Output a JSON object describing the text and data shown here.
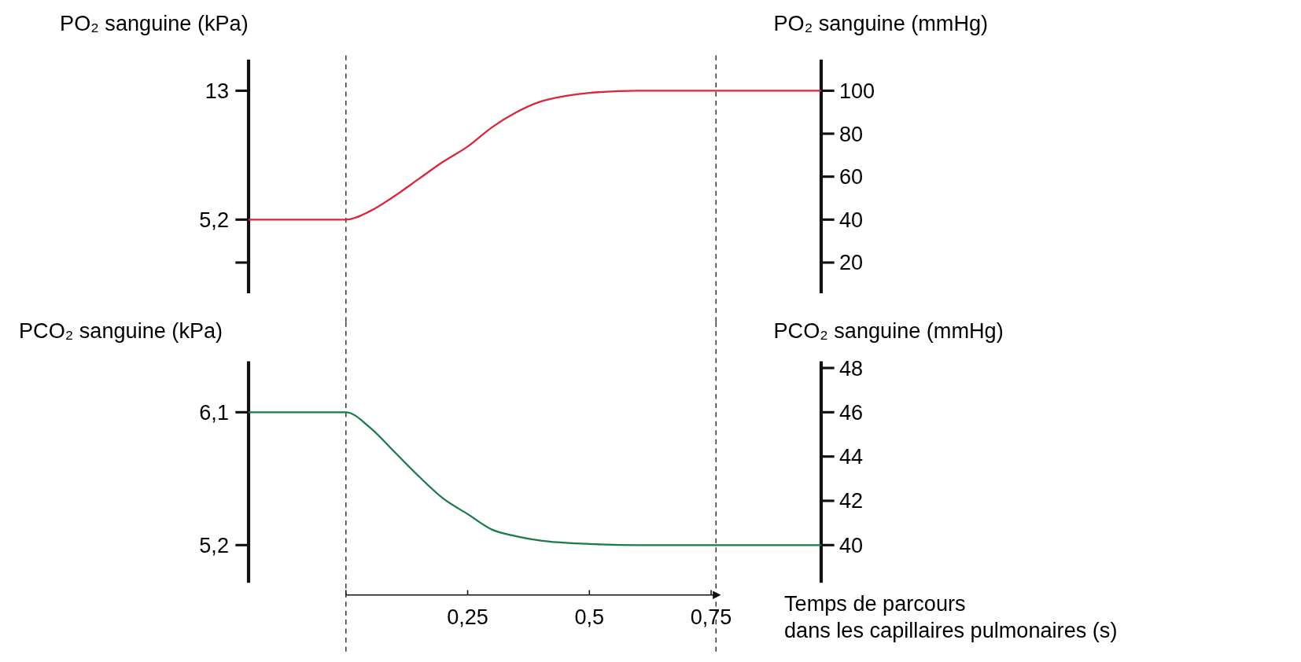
{
  "chart_data": [
    {
      "type": "line",
      "ylabel": "PO₂ sanguine (kPa)",
      "y2label": "PO₂ sanguine (mmHg)",
      "xlim": [
        -0.2,
        0.976
      ],
      "ylim": [
        0.741,
        14.885
      ],
      "yticks": [
        13,
        {
          "value": 5.2,
          "label": "5,2"
        },
        {
          "value": 2.6,
          "label": null
        }
      ],
      "y2lim": [
        5.7,
        114.5
      ],
      "y2ticks": [
        20,
        40,
        60,
        80,
        100
      ],
      "tick_labels": "y",
      "series": [
        {
          "color": "#d9263a",
          "axis": "y2",
          "x": [
            -0.2,
            0,
            0.05,
            0.1,
            0.15,
            0.2,
            0.25,
            0.3,
            0.35,
            0.4,
            0.45,
            0.5,
            0.6,
            0.76,
            0.976
          ],
          "values": [
            40,
            40,
            44,
            51,
            59,
            67,
            74,
            83,
            90,
            95,
            97.5,
            99,
            100,
            100,
            100
          ]
        }
      ],
      "ref_lines": [
        {
          "axis": "x",
          "value": 0,
          "line_style": "dashed"
        },
        {
          "axis": "x",
          "value": 0.76,
          "line_style": "dashed"
        }
      ]
    },
    {
      "type": "line",
      "ylabel": "PCO₂ sanguine (kPa)",
      "y2label": "PCO₂ sanguine (mmHg)",
      "xlabel": "Temps de parcours\ndans les capillaires pulmonaires (s)",
      "xlim": [
        -0.2,
        0.976
      ],
      "xticks": [
        {
          "value": 0,
          "label": null
        },
        {
          "value": 0.25,
          "label": "0,25"
        },
        {
          "value": 0.5,
          "label": "0,5"
        },
        {
          "value": 0.75,
          "label": "0,75"
        }
      ],
      "ylim": [
        4.945,
        6.445
      ],
      "yticks": [
        {
          "value": 6.1,
          "label": "6,1"
        },
        {
          "value": 5.2,
          "label": "5,2"
        }
      ],
      "y2lim": [
        38.3,
        48.3
      ],
      "y2ticks": [
        40,
        42,
        44,
        46,
        48
      ],
      "series": [
        {
          "color": "#1a7a4a",
          "axis": "y2",
          "x": [
            -0.2,
            0,
            0.05,
            0.1,
            0.15,
            0.2,
            0.25,
            0.3,
            0.35,
            0.4,
            0.5,
            0.6,
            0.976
          ],
          "values": [
            46,
            46,
            45.3,
            44.2,
            43.1,
            42.1,
            41.4,
            40.7,
            40.4,
            40.2,
            40.05,
            40,
            40
          ]
        }
      ],
      "ref_lines": [
        {
          "axis": "x",
          "value": 0,
          "line_style": "dashed"
        },
        {
          "axis": "x",
          "value": 0.76,
          "line_style": "dashed"
        }
      ]
    }
  ]
}
